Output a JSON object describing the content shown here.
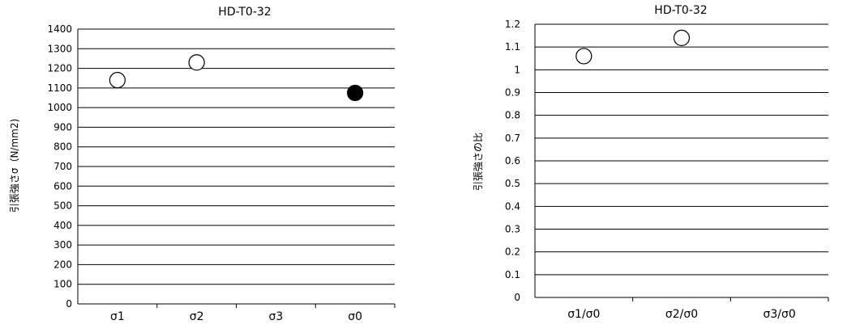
{
  "chart_data": [
    {
      "type": "scatter",
      "title": "HD-T0-32",
      "xlabel": "",
      "ylabel": "引張強さσ（N/mm2)",
      "categories": [
        "σ1",
        "σ2",
        "σ3",
        "σ0"
      ],
      "ylim": [
        0,
        1400
      ],
      "yticks": [
        0,
        100,
        200,
        300,
        400,
        500,
        600,
        700,
        800,
        900,
        1000,
        1100,
        1200,
        1300,
        1400
      ],
      "grid": "horizontal",
      "points": [
        {
          "category": "σ1",
          "value": 1140,
          "marker": "open-circle"
        },
        {
          "category": "σ2",
          "value": 1230,
          "marker": "open-circle"
        },
        {
          "category": "σ0",
          "value": 1075,
          "marker": "filled-circle"
        }
      ]
    },
    {
      "type": "scatter",
      "title": "HD-T0-32",
      "xlabel": "",
      "ylabel": "引張強さの比",
      "categories": [
        "σ1/σ0",
        "σ2/σ0",
        "σ3/σ0"
      ],
      "ylim": [
        0,
        1.2
      ],
      "yticks": [
        0,
        0.1,
        0.2,
        0.3,
        0.4,
        0.5,
        0.6,
        0.7,
        0.8,
        0.9,
        1,
        1.1,
        1.2
      ],
      "grid": "horizontal",
      "points": [
        {
          "category": "σ1/σ0",
          "value": 1.06,
          "marker": "open-circle"
        },
        {
          "category": "σ2/σ0",
          "value": 1.14,
          "marker": "open-circle"
        }
      ]
    }
  ]
}
